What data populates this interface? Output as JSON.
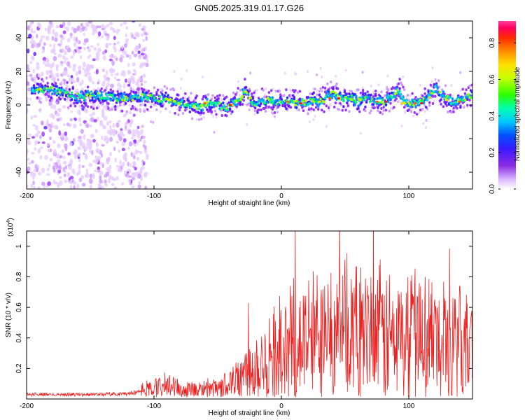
{
  "title": "GN05.2025.319.01.17.G26",
  "colors": {
    "snr_line": "#ee2020",
    "background": "#ffffff",
    "axis": "#000000"
  },
  "chart_data": [
    {
      "type": "heatmap",
      "xlabel": "Height of straight line (km)",
      "ylabel": "Frequency (Hz)",
      "xlim": [
        -200,
        150
      ],
      "ylim": [
        -50,
        50
      ],
      "xticks": [
        -200,
        -100,
        0,
        100
      ],
      "yticks": [
        -40,
        -20,
        0,
        20,
        40
      ],
      "colorbar": {
        "label": "Normalized spectral amplitude",
        "range": [
          0,
          0.92
        ],
        "ticks": [
          0.0,
          0.2,
          0.4,
          0.6,
          0.8
        ],
        "colormap": "rainbow"
      },
      "ridge": {
        "x": [
          -193,
          -180,
          -170,
          -160,
          -150,
          -140,
          -130,
          -120,
          -110,
          -100,
          -90,
          -80,
          -72,
          -65,
          -58,
          -50,
          -42,
          -36,
          -32,
          -29,
          -27,
          -24,
          -20,
          -15,
          -10,
          -5,
          0,
          5,
          10,
          15,
          20,
          25,
          30,
          35,
          40,
          45,
          50,
          55,
          60,
          65,
          70,
          75,
          80,
          85,
          88,
          91,
          93,
          96,
          100,
          105,
          110,
          115,
          118,
          121,
          125,
          130,
          135,
          140,
          145,
          150
        ],
        "y": [
          8,
          9,
          7,
          5,
          6,
          5,
          4,
          4,
          5,
          4,
          3,
          2,
          0,
          -1,
          1,
          0,
          -2,
          2,
          4,
          9,
          7,
          3,
          0,
          2,
          3,
          1,
          2,
          2,
          1,
          2,
          1,
          3,
          2,
          4,
          7,
          5,
          3,
          4,
          2,
          4,
          3,
          3,
          2,
          4,
          6,
          10,
          8,
          2,
          1,
          1,
          2,
          4,
          8,
          10,
          6,
          4,
          1,
          3,
          5,
          6
        ]
      }
    },
    {
      "type": "line",
      "xlabel": "Height of straight line (km)",
      "ylabel": "SNR (10 * v/v)",
      "y_multiplier": "(x10",
      "y_multiplier_exp": "4",
      "y_multiplier_close": ")",
      "xlim": [
        -200,
        150
      ],
      "ylim": [
        0,
        1.1
      ],
      "xticks": [
        -200,
        -100,
        0,
        100
      ],
      "yticks": [
        0.2,
        0.4,
        0.6,
        0.8,
        1
      ],
      "series": [
        {
          "name": "SNR",
          "x": [
            -200,
            -150,
            -120,
            -110,
            -100,
            -90,
            -80,
            -70,
            -60,
            -50,
            -40,
            -30,
            -20,
            -10,
            0,
            10,
            20,
            30,
            40,
            50,
            60,
            70,
            80,
            90,
            100,
            110,
            120,
            130,
            140,
            150
          ],
          "y": [
            0.03,
            0.03,
            0.035,
            0.05,
            0.07,
            0.08,
            0.07,
            0.06,
            0.06,
            0.07,
            0.1,
            0.16,
            0.23,
            0.28,
            0.33,
            0.37,
            0.38,
            0.42,
            0.43,
            0.42,
            0.4,
            0.41,
            0.42,
            0.38,
            0.4,
            0.42,
            0.38,
            0.37,
            0.35,
            0.38
          ]
        }
      ]
    }
  ]
}
